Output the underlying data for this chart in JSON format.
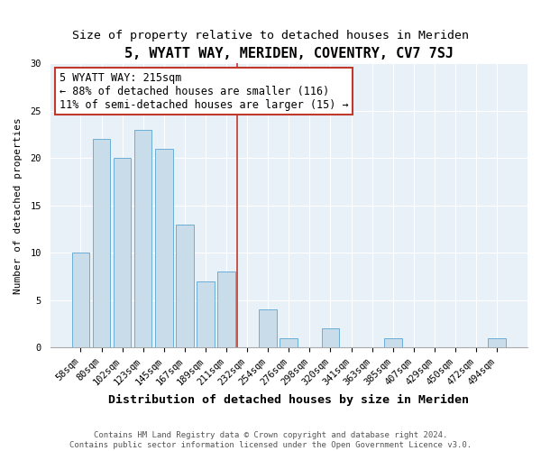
{
  "title": "5, WYATT WAY, MERIDEN, COVENTRY, CV7 7SJ",
  "subtitle": "Size of property relative to detached houses in Meriden",
  "xlabel": "Distribution of detached houses by size in Meriden",
  "ylabel": "Number of detached properties",
  "bar_labels": [
    "58sqm",
    "80sqm",
    "102sqm",
    "123sqm",
    "145sqm",
    "167sqm",
    "189sqm",
    "211sqm",
    "232sqm",
    "254sqm",
    "276sqm",
    "298sqm",
    "320sqm",
    "341sqm",
    "363sqm",
    "385sqm",
    "407sqm",
    "429sqm",
    "450sqm",
    "472sqm",
    "494sqm"
  ],
  "bar_values": [
    10,
    22,
    20,
    23,
    21,
    13,
    7,
    8,
    0,
    4,
    1,
    0,
    2,
    0,
    0,
    1,
    0,
    0,
    0,
    0,
    1
  ],
  "bar_color": "#c9dcea",
  "bar_edge_color": "#6aaed6",
  "highlight_index": 7,
  "highlight_color": "#c0392b",
  "annotation_title": "5 WYATT WAY: 215sqm",
  "annotation_line1": "← 88% of detached houses are smaller (116)",
  "annotation_line2": "11% of semi-detached houses are larger (15) →",
  "annotation_box_color": "#c0392b",
  "ylim": [
    0,
    30
  ],
  "yticks": [
    0,
    5,
    10,
    15,
    20,
    25,
    30
  ],
  "footnote1": "Contains HM Land Registry data © Crown copyright and database right 2024.",
  "footnote2": "Contains public sector information licensed under the Open Government Licence v3.0.",
  "background_color": "#dce9f5",
  "plot_bg_color": "#e8f0f8",
  "title_fontsize": 11,
  "subtitle_fontsize": 9.5,
  "xlabel_fontsize": 9.5,
  "ylabel_fontsize": 8,
  "tick_fontsize": 7.5,
  "annotation_fontsize": 8.5,
  "footnote_fontsize": 6.5
}
